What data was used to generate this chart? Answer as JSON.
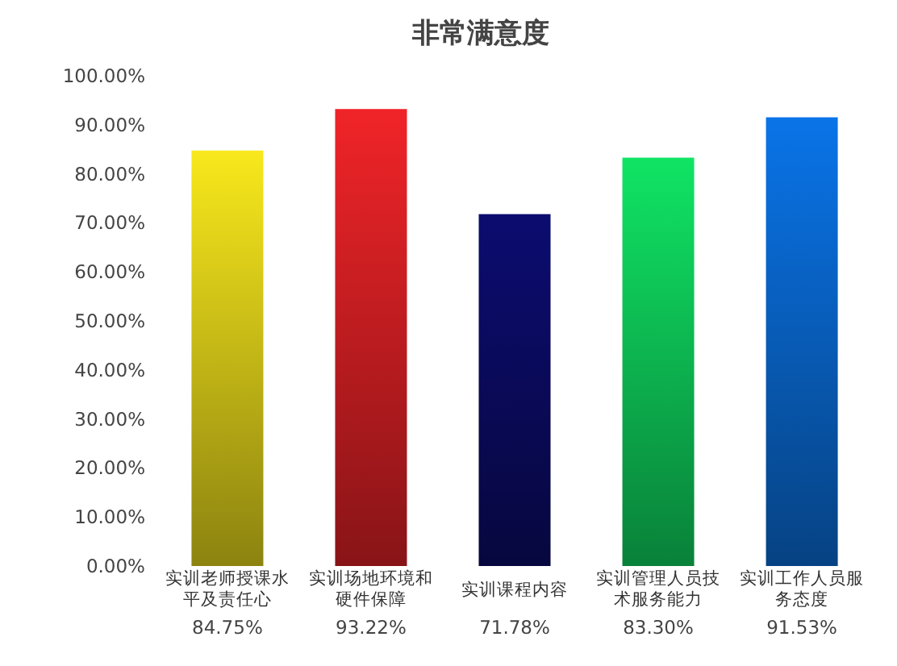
{
  "chart_data": {
    "type": "bar",
    "title": "非常满意度",
    "categories": [
      "实训老师授课水平及责任心",
      "实训场地环境和硬件保障",
      "实训课程内容",
      "实训管理人员技术服务能力",
      "实训工作人员服务态度"
    ],
    "values": [
      84.75,
      93.22,
      71.78,
      83.3,
      91.53
    ],
    "colors": [
      "#f8e81c",
      "#f02428",
      "#0c0c70",
      "#10e464",
      "#0a74e8"
    ],
    "value_labels": [
      "84.75%",
      "93.22%",
      "71.78%",
      "83.30%",
      "91.53%"
    ],
    "ylim": [
      0,
      100
    ],
    "yticks": [
      {
        "value": 0,
        "label": "0.00%"
      },
      {
        "value": 10,
        "label": "10.00%"
      },
      {
        "value": 20,
        "label": "20.00%"
      },
      {
        "value": 30,
        "label": "30.00%"
      },
      {
        "value": 40,
        "label": "40.00%"
      },
      {
        "value": 50,
        "label": "50.00%"
      },
      {
        "value": 60,
        "label": "60.00%"
      },
      {
        "value": 70,
        "label": "70.00%"
      },
      {
        "value": 80,
        "label": "80.00%"
      },
      {
        "value": 90,
        "label": "90.00%"
      },
      {
        "value": 100,
        "label": "100.00%"
      }
    ],
    "grid": false
  }
}
